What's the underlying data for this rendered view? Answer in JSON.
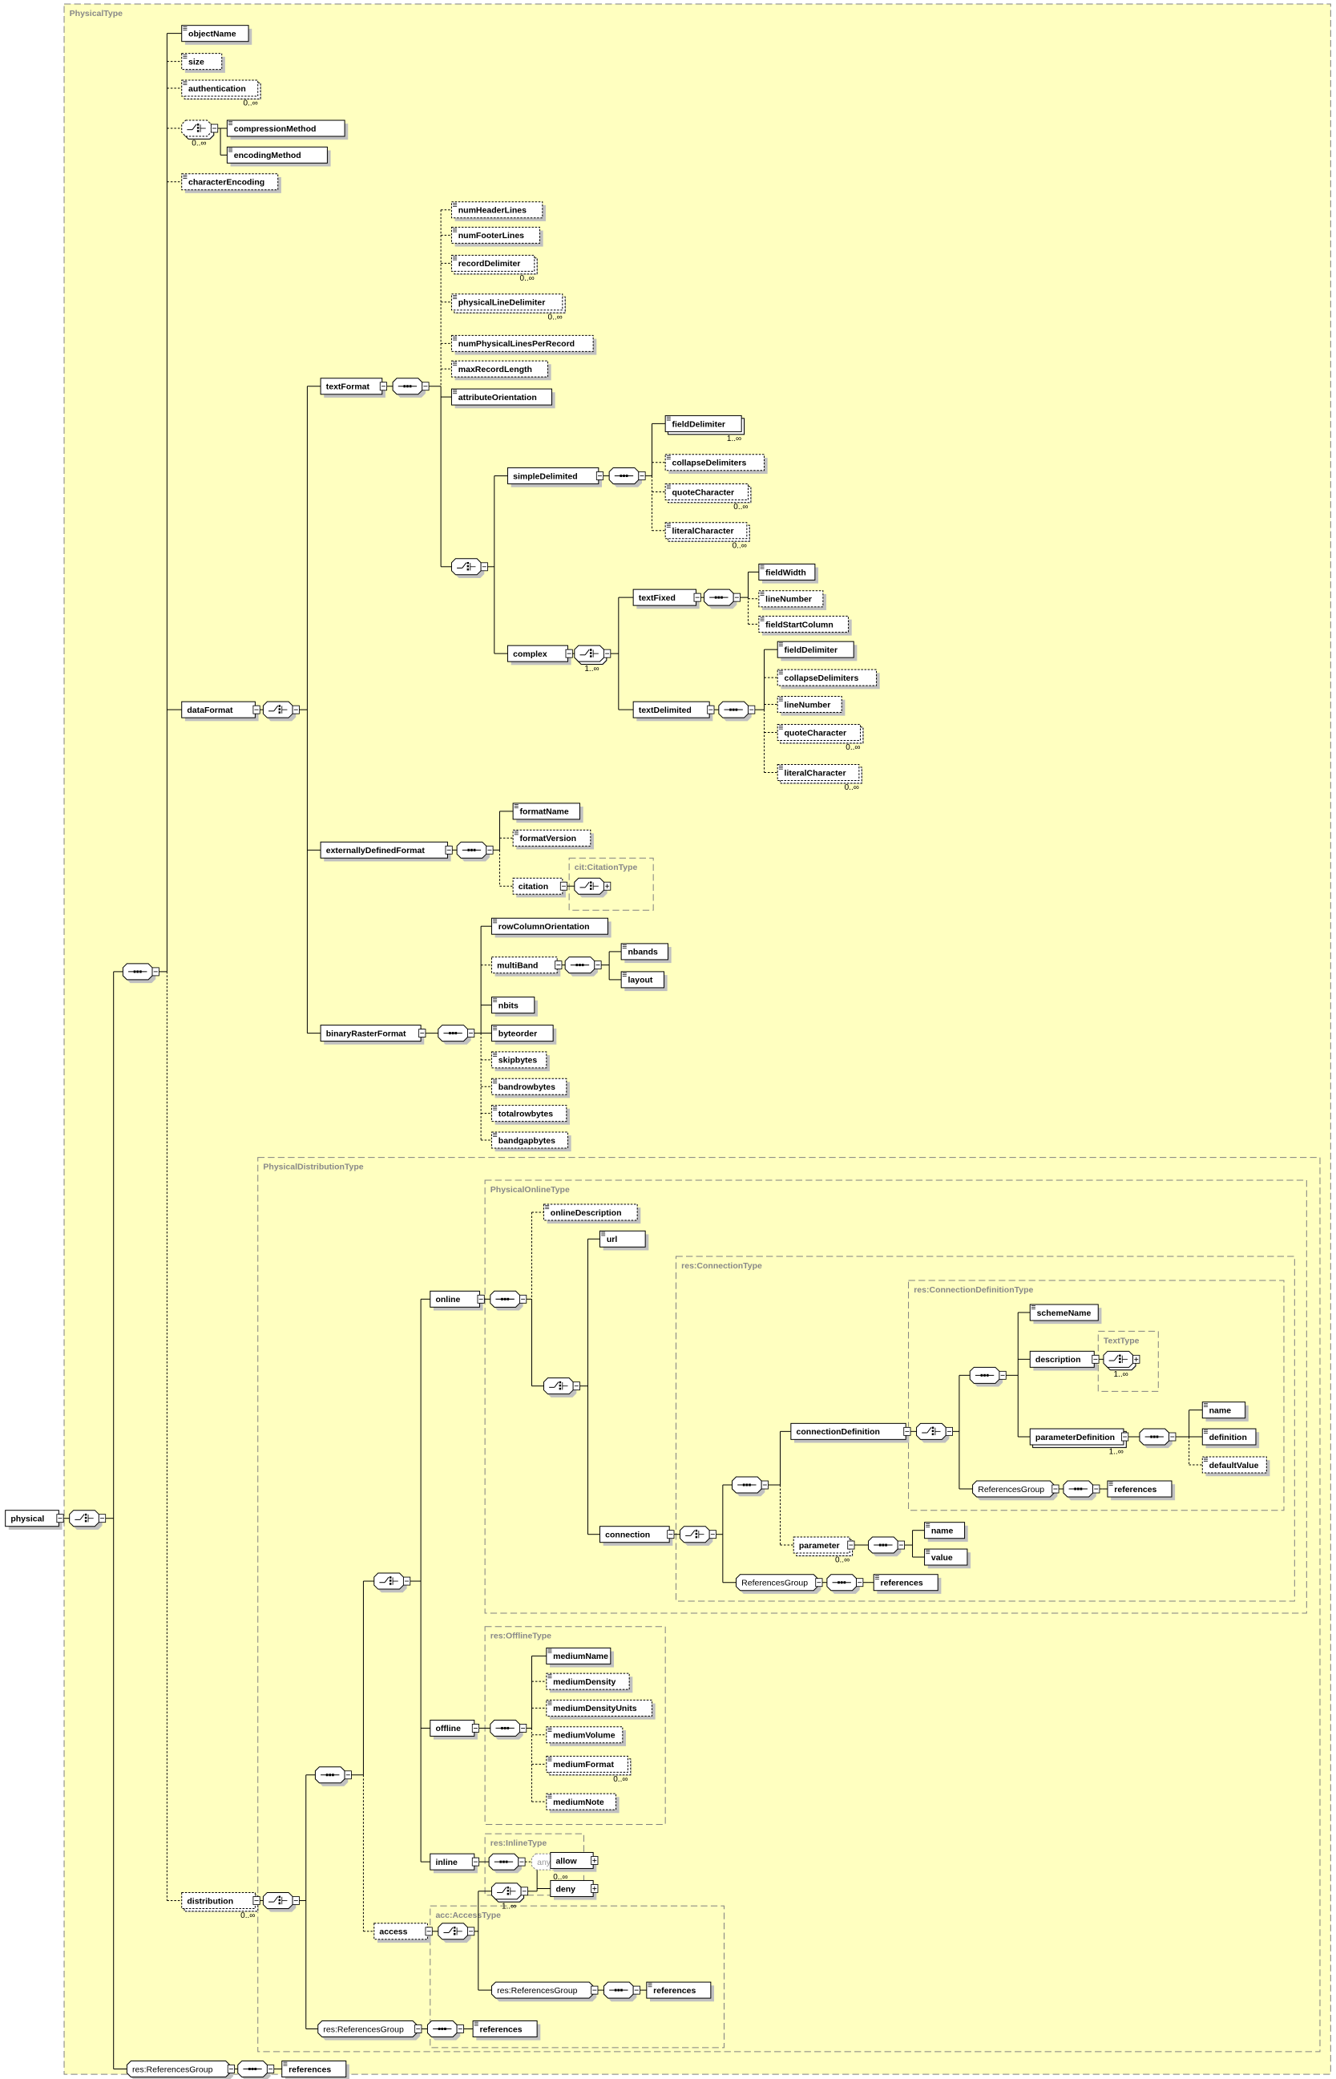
{
  "colors": {
    "type_background": "#ffffc0",
    "type_border": "#808080",
    "node_fill": "#ffffff",
    "shadow": "#c0c0c0",
    "line": "#000000"
  },
  "types": {
    "PhysicalType": "PhysicalType",
    "CitationType": "cit:CitationType",
    "PhysicalDistributionType": "PhysicalDistributionType",
    "PhysicalOnlineType": "PhysicalOnlineType",
    "ConnectionType": "res:ConnectionType",
    "ConnectionDefinitionType": "res:ConnectionDefinitionType",
    "TextType": "TextType",
    "OfflineType": "res:OfflineType",
    "InlineType": "res:InlineType",
    "AccessType": "acc:AccessType"
  },
  "nodes": {
    "physical": {
      "label": "physical"
    },
    "objectName": {
      "label": "objectName"
    },
    "size": {
      "label": "size"
    },
    "authentication": {
      "label": "authentication",
      "card": "0..∞"
    },
    "choiceCompression": {
      "card": "0..∞"
    },
    "compressionMethod": {
      "label": "compressionMethod"
    },
    "encodingMethod": {
      "label": "encodingMethod"
    },
    "characterEncoding": {
      "label": "characterEncoding"
    },
    "dataFormat": {
      "label": "dataFormat"
    },
    "textFormat": {
      "label": "textFormat"
    },
    "numHeaderLines": {
      "label": "numHeaderLines"
    },
    "numFooterLines": {
      "label": "numFooterLines"
    },
    "recordDelimiter": {
      "label": "recordDelimiter",
      "card": "0..∞"
    },
    "physicalLineDelimiter": {
      "label": "physicalLineDelimiter",
      "card": "0..∞"
    },
    "numPhysicalLinesPerRecord": {
      "label": "numPhysicalLinesPerRecord"
    },
    "maxRecordLength": {
      "label": "maxRecordLength"
    },
    "attributeOrientation": {
      "label": "attributeOrientation"
    },
    "simpleDelimited": {
      "label": "simpleDelimited"
    },
    "sdFieldDelimiter": {
      "label": "fieldDelimiter",
      "card": "1..∞"
    },
    "sdCollapseDelimiters": {
      "label": "collapseDelimiters"
    },
    "sdQuoteCharacter": {
      "label": "quoteCharacter",
      "card": "0..∞"
    },
    "sdLiteralCharacter": {
      "label": "literalCharacter",
      "card": "0..∞"
    },
    "complex": {
      "label": "complex"
    },
    "complexChoice": {
      "card": "1..∞"
    },
    "textFixed": {
      "label": "textFixed"
    },
    "fieldWidth": {
      "label": "fieldWidth"
    },
    "tfLineNumber": {
      "label": "lineNumber"
    },
    "fieldStartColumn": {
      "label": "fieldStartColumn"
    },
    "textDelimited": {
      "label": "textDelimited"
    },
    "tdFieldDelimiter": {
      "label": "fieldDelimiter"
    },
    "tdCollapseDelimiters": {
      "label": "collapseDelimiters"
    },
    "tdLineNumber": {
      "label": "lineNumber"
    },
    "tdQuoteCharacter": {
      "label": "quoteCharacter",
      "card": "0..∞"
    },
    "tdLiteralCharacter": {
      "label": "literalCharacter",
      "card": "0..∞"
    },
    "externallyDefinedFormat": {
      "label": "externallyDefinedFormat"
    },
    "formatName": {
      "label": "formatName"
    },
    "formatVersion": {
      "label": "formatVersion"
    },
    "citation": {
      "label": "citation"
    },
    "binaryRasterFormat": {
      "label": "binaryRasterFormat"
    },
    "rowColumnOrientation": {
      "label": "rowColumnOrientation"
    },
    "multiBand": {
      "label": "multiBand"
    },
    "nbands": {
      "label": "nbands"
    },
    "layout": {
      "label": "layout"
    },
    "nbits": {
      "label": "nbits"
    },
    "byteorder": {
      "label": "byteorder"
    },
    "skipbytes": {
      "label": "skipbytes"
    },
    "bandrowbytes": {
      "label": "bandrowbytes"
    },
    "totalrowbytes": {
      "label": "totalrowbytes"
    },
    "bandgapbytes": {
      "label": "bandgapbytes"
    },
    "distribution": {
      "label": "distribution",
      "card": "0..∞"
    },
    "online": {
      "label": "online"
    },
    "onlineDescription": {
      "label": "onlineDescription"
    },
    "url": {
      "label": "url"
    },
    "connection": {
      "label": "connection"
    },
    "connectionDefinition": {
      "label": "connectionDefinition"
    },
    "schemeName": {
      "label": "schemeName"
    },
    "description": {
      "label": "description"
    },
    "descChoice": {
      "card": "1..∞"
    },
    "parameterDefinition": {
      "label": "parameterDefinition",
      "card": "1..∞"
    },
    "pdName": {
      "label": "name"
    },
    "pdDefinition": {
      "label": "definition"
    },
    "pdDefaultValue": {
      "label": "defaultValue"
    },
    "cdtRefGroup": {
      "label": "ReferencesGroup"
    },
    "cdtReferences": {
      "label": "references"
    },
    "parameter": {
      "label": "parameter",
      "card": "0..∞"
    },
    "pName": {
      "label": "name"
    },
    "pValue": {
      "label": "value"
    },
    "ctRefGroup": {
      "label": "ReferencesGroup"
    },
    "ctReferences": {
      "label": "references"
    },
    "offline": {
      "label": "offline"
    },
    "mediumName": {
      "label": "mediumName"
    },
    "mediumDensity": {
      "label": "mediumDensity"
    },
    "mediumDensityUnits": {
      "label": "mediumDensityUnits"
    },
    "mediumVolume": {
      "label": "mediumVolume"
    },
    "mediumFormat": {
      "label": "mediumFormat",
      "card": "0..∞"
    },
    "mediumNote": {
      "label": "mediumNote"
    },
    "inline": {
      "label": "inline"
    },
    "any": {
      "label": "any",
      "card": "0..∞"
    },
    "access": {
      "label": "access"
    },
    "accChoice": {
      "card": "1..∞"
    },
    "allow": {
      "label": "allow"
    },
    "deny": {
      "label": "deny"
    },
    "accRefGroup": {
      "label": "res:ReferencesGroup"
    },
    "accReferences": {
      "label": "references"
    },
    "distRefGroup": {
      "label": "res:ReferencesGroup"
    },
    "distReferences": {
      "label": "references"
    },
    "rootRefGroup": {
      "label": "res:ReferencesGroup"
    },
    "rootReferences": {
      "label": "references"
    }
  }
}
